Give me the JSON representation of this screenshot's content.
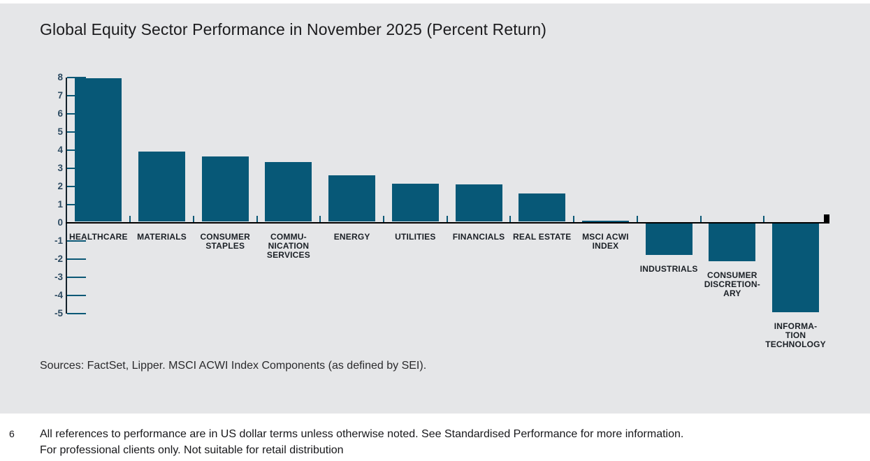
{
  "header": {
    "title": "Global Equity Sector Performance in November 2025 (Percent Return)"
  },
  "colors": {
    "panel_background": "#e5e6e8",
    "bar": "#075877",
    "axis_tick": "#0b5876",
    "ytick_label": "#2c4a61",
    "baseline": "#000000",
    "category_label": "#1b2026"
  },
  "chart_data": {
    "type": "bar",
    "title": "Global Equity Sector Performance in November 2025 (Percent Return)",
    "categories": [
      "Healthcare",
      "Materials",
      "Consumer Staples",
      "Communication Services",
      "Energy",
      "Utilities",
      "Financials",
      "Real Estate",
      "MSCI ACWI Index",
      "Industrials",
      "Consumer Discretionary",
      "Information Technology"
    ],
    "category_label_lines": [
      [
        "HEALTHCARE"
      ],
      [
        "MATERIALS"
      ],
      [
        "CONSUMER",
        "STAPLES"
      ],
      [
        "COMMU-",
        "NICATION",
        "SERVICES"
      ],
      [
        "ENERGY"
      ],
      [
        "UTILITIES"
      ],
      [
        "FINANCIALS"
      ],
      [
        "REAL ESTATE"
      ],
      [
        "MSCI ACWI",
        "INDEX"
      ],
      [
        "INDUSTRIALS"
      ],
      [
        "CONSUMER",
        "DISCRETION-",
        "ARY"
      ],
      [
        "INFORMA-",
        "TION",
        "TECHNOLOGY"
      ]
    ],
    "values": [
      7.9,
      3.85,
      3.6,
      3.3,
      2.55,
      2.1,
      2.05,
      1.55,
      0.05,
      -1.75,
      -2.1,
      -4.9
    ],
    "ylabel": "",
    "xlabel": "",
    "ylim": [
      -5,
      8
    ],
    "yticks": [
      8,
      7,
      6,
      5,
      4,
      3,
      2,
      1,
      0,
      -1,
      -2,
      -3,
      -4,
      -5
    ],
    "grid": false,
    "legend": false
  },
  "source_note": "Sources: FactSet, Lipper. MSCI ACWI Index Components (as defined by SEI).",
  "footer": {
    "page_number": "6",
    "lines": [
      "All references to performance are in US dollar terms unless otherwise noted. See Standardised Performance for more information.",
      "For professional clients only. Not suitable for retail distribution"
    ]
  }
}
